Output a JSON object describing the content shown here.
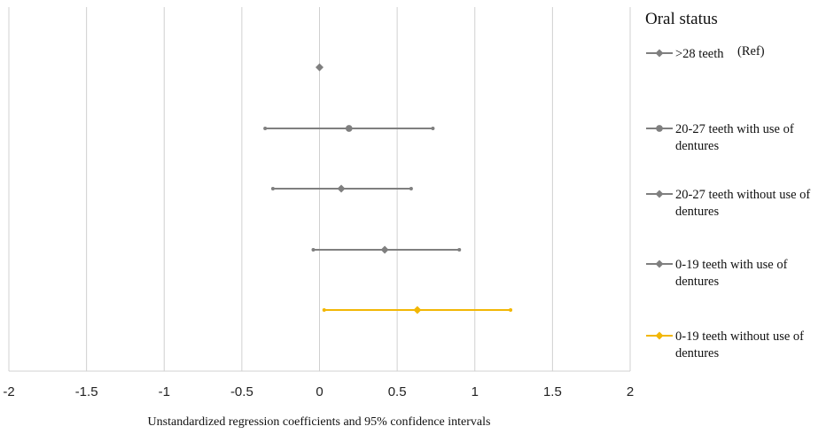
{
  "chart_data": {
    "type": "scatter",
    "subtype": "forest-plot",
    "title": "",
    "xlabel": "Unstandardized regression coefficients and 95% confidence intervals",
    "ylabel": "",
    "xlim": [
      -2,
      2
    ],
    "xticks": [
      "-2",
      "-1.5",
      "-1",
      "-0.5",
      "0",
      "0.5",
      "1",
      "1.5",
      "2"
    ],
    "grid": "vertical",
    "legend": {
      "title": "Oral status",
      "placement": "right"
    },
    "series": [
      {
        "name": ">28 teeth",
        "name_suffix": "(Ref)",
        "estimate": 0,
        "ci_low": 0,
        "ci_high": 0,
        "marker": "diamond",
        "color": "#7f7f7f"
      },
      {
        "name": "20-27 teeth with use of dentures",
        "estimate": 0.19,
        "ci_low": -0.35,
        "ci_high": 0.73,
        "marker": "circle",
        "color": "#7f7f7f"
      },
      {
        "name": "20-27 teeth without use of dentures",
        "estimate": 0.14,
        "ci_low": -0.3,
        "ci_high": 0.59,
        "marker": "diamond",
        "color": "#7f7f7f"
      },
      {
        "name": "0-19 teeth with use of dentures",
        "estimate": 0.42,
        "ci_low": -0.04,
        "ci_high": 0.9,
        "marker": "diamond",
        "color": "#7f7f7f"
      },
      {
        "name": "0-19 teeth without use of dentures",
        "estimate": 0.63,
        "ci_low": 0.03,
        "ci_high": 1.23,
        "marker": "diamond",
        "color": "#f2b705"
      }
    ]
  }
}
